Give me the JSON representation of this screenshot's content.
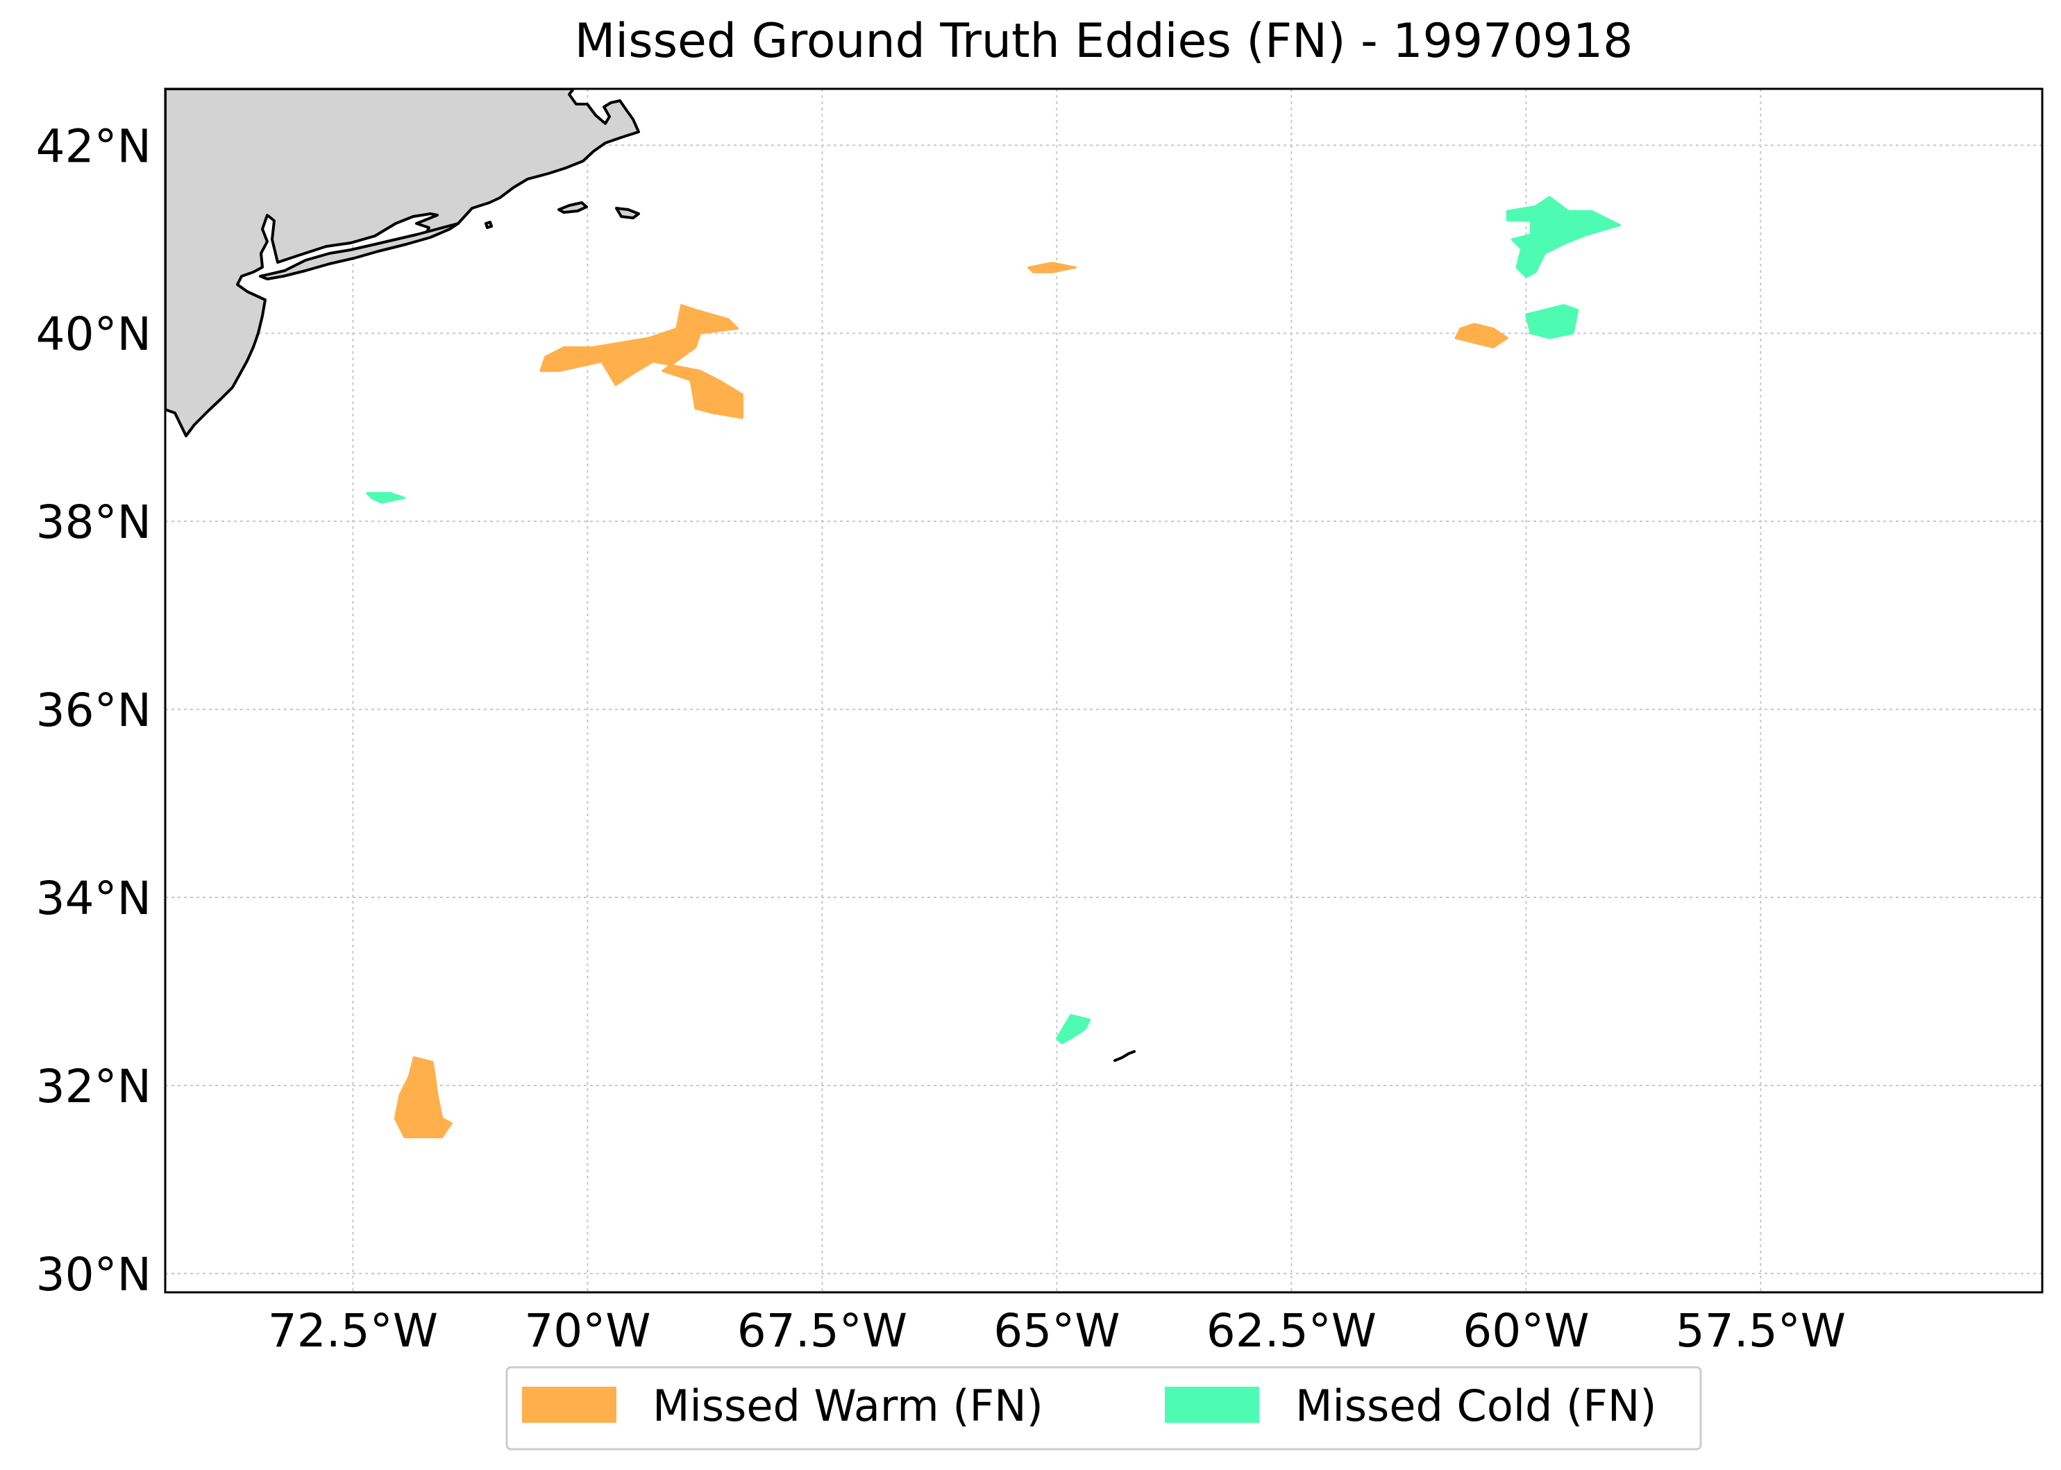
{
  "title": "Missed Ground Truth Eddies (FN) - 19970918",
  "map": {
    "lon_range": [
      -74.5,
      -54.5
    ],
    "lat_range": [
      29.8,
      42.6
    ],
    "land_color": "#d3d3d3",
    "gridlines": true,
    "lon_ticks": [
      {
        "value": -72.5,
        "label": "72.5°W"
      },
      {
        "value": -70,
        "label": "70°W"
      },
      {
        "value": -67.5,
        "label": "67.5°W"
      },
      {
        "value": -65,
        "label": "65°W"
      },
      {
        "value": -62.5,
        "label": "62.5°W"
      },
      {
        "value": -60,
        "label": "60°W"
      },
      {
        "value": -57.5,
        "label": "57.5°W"
      }
    ],
    "lat_ticks": [
      {
        "value": 42,
        "label": "42°N"
      },
      {
        "value": 40,
        "label": "40°N"
      },
      {
        "value": 38,
        "label": "38°N"
      },
      {
        "value": 36,
        "label": "36°N"
      },
      {
        "value": 34,
        "label": "34°N"
      },
      {
        "value": 32,
        "label": "32°N"
      },
      {
        "value": 30,
        "label": "30°N"
      }
    ]
  },
  "legend": {
    "placement": "bottom-center",
    "items": [
      {
        "label": "Missed Warm (FN)",
        "color": "#ffb04b"
      },
      {
        "label": "Missed Cold (FN)",
        "color": "#4dfcb2"
      }
    ]
  },
  "eddies": [
    {
      "type": "warm",
      "polygon": [
        [
          -70.45,
          39.75
        ],
        [
          -70.25,
          39.85
        ],
        [
          -69.95,
          39.85
        ],
        [
          -69.65,
          39.9
        ],
        [
          -69.35,
          39.95
        ],
        [
          -69.05,
          40.05
        ],
        [
          -69.0,
          40.3
        ],
        [
          -68.85,
          40.25
        ],
        [
          -68.5,
          40.15
        ],
        [
          -68.4,
          40.05
        ],
        [
          -68.8,
          40.0
        ],
        [
          -68.85,
          39.85
        ],
        [
          -69.2,
          39.6
        ],
        [
          -68.9,
          39.5
        ],
        [
          -68.85,
          39.2
        ],
        [
          -68.65,
          39.15
        ],
        [
          -68.35,
          39.1
        ],
        [
          -68.35,
          39.35
        ],
        [
          -68.6,
          39.5
        ],
        [
          -68.8,
          39.6
        ],
        [
          -69.3,
          39.7
        ],
        [
          -69.55,
          39.55
        ],
        [
          -69.7,
          39.45
        ],
        [
          -69.85,
          39.7
        ],
        [
          -70.3,
          39.6
        ],
        [
          -70.5,
          39.6
        ]
      ]
    },
    {
      "type": "warm",
      "polygon": [
        [
          -65.3,
          40.7
        ],
        [
          -65.05,
          40.75
        ],
        [
          -64.8,
          40.7
        ],
        [
          -65.05,
          40.65
        ],
        [
          -65.25,
          40.65
        ]
      ]
    },
    {
      "type": "warm",
      "polygon": [
        [
          -60.7,
          40.05
        ],
        [
          -60.55,
          40.1
        ],
        [
          -60.35,
          40.05
        ],
        [
          -60.2,
          39.95
        ],
        [
          -60.35,
          39.85
        ],
        [
          -60.55,
          39.9
        ],
        [
          -60.75,
          39.95
        ]
      ]
    },
    {
      "type": "warm",
      "polygon": [
        [
          -71.85,
          32.3
        ],
        [
          -71.65,
          32.25
        ],
        [
          -71.6,
          31.9
        ],
        [
          -71.55,
          31.65
        ],
        [
          -71.45,
          31.6
        ],
        [
          -71.55,
          31.45
        ],
        [
          -71.95,
          31.45
        ],
        [
          -72.05,
          31.65
        ],
        [
          -72.0,
          31.9
        ],
        [
          -71.9,
          32.1
        ]
      ]
    },
    {
      "type": "cold",
      "polygon": [
        [
          -60.2,
          41.3
        ],
        [
          -59.9,
          41.35
        ],
        [
          -59.75,
          41.45
        ],
        [
          -59.55,
          41.3
        ],
        [
          -59.3,
          41.3
        ],
        [
          -59.0,
          41.15
        ],
        [
          -59.35,
          41.05
        ],
        [
          -59.6,
          40.95
        ],
        [
          -59.8,
          40.85
        ],
        [
          -59.9,
          40.65
        ],
        [
          -60.0,
          40.6
        ],
        [
          -60.1,
          40.7
        ],
        [
          -60.05,
          40.9
        ],
        [
          -60.15,
          41.0
        ],
        [
          -59.95,
          41.05
        ],
        [
          -59.95,
          41.2
        ],
        [
          -60.2,
          41.2
        ]
      ]
    },
    {
      "type": "cold",
      "polygon": [
        [
          -60.0,
          40.2
        ],
        [
          -59.8,
          40.25
        ],
        [
          -59.6,
          40.3
        ],
        [
          -59.45,
          40.25
        ],
        [
          -59.5,
          40.0
        ],
        [
          -59.75,
          39.95
        ],
        [
          -59.95,
          40.0
        ]
      ]
    },
    {
      "type": "cold",
      "polygon": [
        [
          -72.35,
          38.3
        ],
        [
          -72.1,
          38.3
        ],
        [
          -71.95,
          38.25
        ],
        [
          -72.2,
          38.2
        ],
        [
          -72.3,
          38.25
        ]
      ]
    },
    {
      "type": "cold",
      "polygon": [
        [
          -65.0,
          32.5
        ],
        [
          -64.85,
          32.75
        ],
        [
          -64.65,
          32.7
        ],
        [
          -64.7,
          32.6
        ],
        [
          -64.85,
          32.5
        ],
        [
          -64.95,
          32.45
        ]
      ]
    }
  ]
}
